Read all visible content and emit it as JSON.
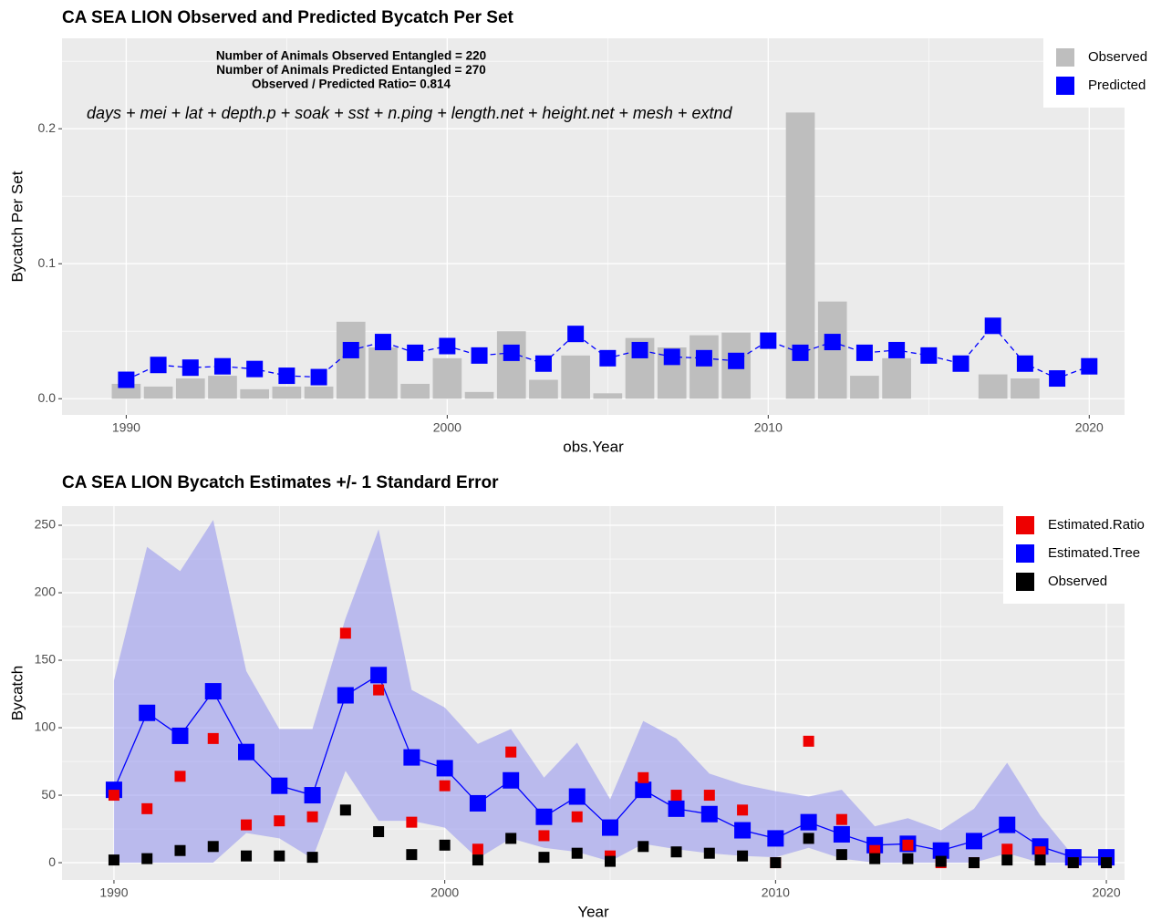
{
  "chart_data": [
    {
      "type": "bar",
      "title": "CA SEA LION Observed and Predicted Bycatch Per Set",
      "annotations": [
        "Number of Animals Observed Entangled = 220",
        "Number of Animals Predicted Entangled = 270",
        "Observed / Predicted Ratio= 0.814"
      ],
      "formula": "days + mei + lat + depth.p + soak + sst + n.ping + length.net + height.net + mesh + extnd",
      "x_label": "obs.Year",
      "y_label": "Bycatch Per Set",
      "x": [
        1990,
        1991,
        1992,
        1993,
        1994,
        1995,
        1996,
        1997,
        1998,
        1999,
        2000,
        2001,
        2002,
        2003,
        2004,
        2005,
        2006,
        2007,
        2008,
        2009,
        2010,
        2011,
        2012,
        2013,
        2014,
        2015,
        2016,
        2017,
        2018,
        2019,
        2020
      ],
      "series": [
        {
          "name": "Observed",
          "color": "#bebebe",
          "style": "bar",
          "values": [
            0.011,
            0.009,
            0.015,
            0.017,
            0.007,
            0.009,
            0.009,
            0.057,
            0.038,
            0.011,
            0.03,
            0.005,
            0.05,
            0.014,
            0.032,
            0.004,
            0.045,
            0.038,
            0.047,
            0.049,
            0,
            0.212,
            0.072,
            0.017,
            0.03,
            0,
            0,
            0.018,
            0.015,
            0,
            0
          ]
        },
        {
          "name": "Predicted",
          "color": "#0000ff",
          "style": "dashed-line-square",
          "values": [
            0.014,
            0.025,
            0.023,
            0.024,
            0.022,
            0.017,
            0.016,
            0.036,
            0.042,
            0.034,
            0.039,
            0.032,
            0.034,
            0.026,
            0.048,
            0.03,
            0.036,
            0.031,
            0.03,
            0.028,
            0.043,
            0.034,
            0.042,
            0.034,
            0.036,
            0.032,
            0.026,
            0.054,
            0.026,
            0.015,
            0.024
          ]
        }
      ],
      "xlim": [
        1988.0,
        2021.1
      ],
      "xticks": [
        1990,
        2000,
        2010,
        2020
      ],
      "ylim": [
        -0.012,
        0.267
      ],
      "yticks": [
        {
          "value": 0,
          "label": "0.0"
        },
        0.1,
        0.2
      ],
      "grid": true,
      "legend": "right"
    },
    {
      "type": "line",
      "title": "CA SEA LION Bycatch Estimates +/- 1 Standard Error",
      "x_label": "Year",
      "y_label": "Bycatch",
      "x": [
        1990,
        1991,
        1992,
        1993,
        1994,
        1995,
        1996,
        1997,
        1998,
        1999,
        2000,
        2001,
        2002,
        2003,
        2004,
        2005,
        2006,
        2007,
        2008,
        2009,
        2010,
        2011,
        2012,
        2013,
        2014,
        2015,
        2016,
        2017,
        2018,
        2019,
        2020
      ],
      "band": {
        "color": "#9999ee",
        "upper": [
          135,
          234,
          216,
          254,
          142,
          99,
          99,
          181,
          247,
          128,
          115,
          88,
          99,
          63,
          89,
          47,
          105,
          92,
          66,
          58,
          53,
          49,
          54,
          27,
          33,
          24,
          40,
          74,
          35,
          5,
          4
        ],
        "lower": [
          0,
          0,
          0,
          0,
          22,
          18,
          3,
          68,
          31,
          31,
          26,
          3,
          18,
          11,
          8,
          1,
          14,
          10,
          7,
          5,
          4,
          11,
          3,
          0,
          0,
          0,
          0,
          7,
          0,
          0,
          0
        ]
      },
      "series": [
        {
          "name": "Estimated.Ratio",
          "color": "#ee0000",
          "style": "square",
          "values": [
            50,
            40,
            64,
            92,
            28,
            31,
            34,
            170,
            128,
            30,
            57,
            10,
            82,
            20,
            34,
            5,
            63,
            50,
            50,
            39,
            0,
            90,
            32,
            9,
            13,
            0,
            0,
            10,
            8,
            0,
            0
          ]
        },
        {
          "name": "Estimated.Tree",
          "color": "#0000ff",
          "style": "line-square",
          "values": [
            54,
            111,
            94,
            127,
            82,
            57,
            50,
            124,
            139,
            78,
            70,
            44,
            61,
            34,
            49,
            26,
            54,
            40,
            36,
            24,
            18,
            30,
            21,
            13,
            14,
            9,
            16,
            28,
            12,
            4,
            4
          ]
        },
        {
          "name": "Observed",
          "color": "#000000",
          "style": "square",
          "values": [
            2,
            3,
            9,
            12,
            5,
            5,
            4,
            39,
            23,
            6,
            13,
            2,
            18,
            4,
            7,
            1,
            12,
            8,
            7,
            5,
            0,
            18,
            6,
            3,
            3,
            1,
            0,
            2,
            2,
            0,
            0
          ]
        }
      ],
      "xlim": [
        1988.43,
        2020.55
      ],
      "xticks": [
        1990,
        2000,
        2010,
        2020
      ],
      "ylim": [
        -12.8,
        264.2
      ],
      "yticks": [
        0,
        50,
        100,
        150,
        200,
        250
      ],
      "grid": true,
      "legend": "right"
    }
  ]
}
